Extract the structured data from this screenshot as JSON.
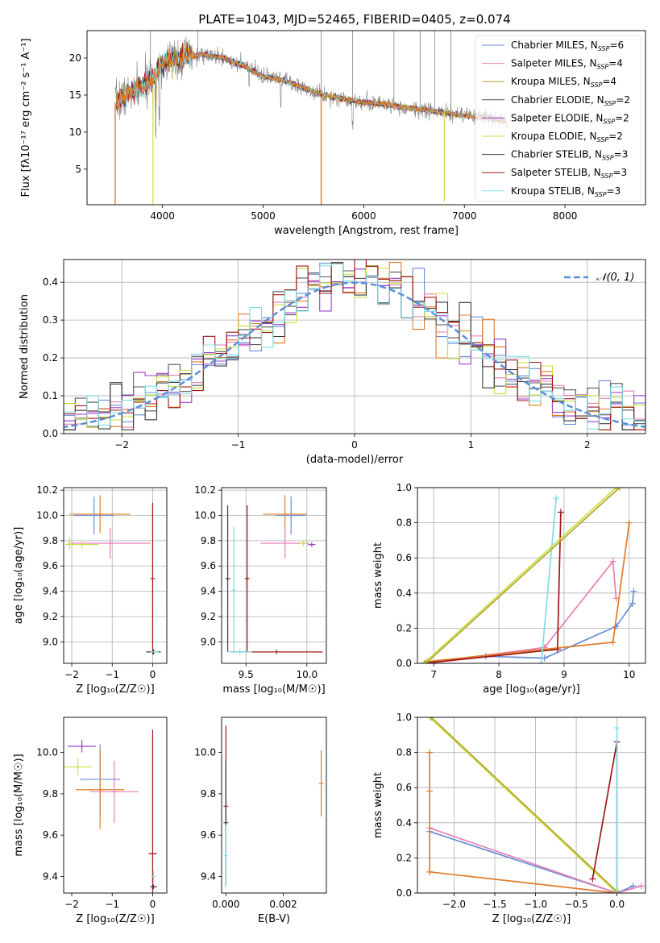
{
  "figure_title": "PLATE=1043, MJD=52465, FIBERID=0405, z=0.074",
  "colors": {
    "Chabrier MILES": "#6a8fd6",
    "Salpeter MILES": "#e67fb6",
    "Kroupa MILES": "#b5a630",
    "Chabrier ELODIE": "#555555",
    "Salpeter ELODIE": "#9a3fd0",
    "Kroupa ELODIE": "#c8e040",
    "Chabrier STELIB": "#3b3b3b",
    "Salpeter STELIB": "#a01818",
    "Kroupa STELIB": "#80dde6",
    "orange": "#e07b25",
    "data_spectrum": "#808080",
    "normal_curve": "#5b8fd8"
  },
  "chart_data": [
    {
      "type": "line",
      "panel": "spectrum",
      "xlabel": "wavelength [Angstrom, rest frame]",
      "ylabel": "Flux [fλ10⁻¹⁷ erg cm⁻² s⁻¹ A⁻¹]",
      "xlim": [
        3250,
        8800
      ],
      "ylim": [
        0.2,
        23.7
      ],
      "xticks": [
        "4000",
        "5000",
        "6000",
        "7000",
        "8000"
      ],
      "yticks": [
        "5",
        "10",
        "15",
        "20"
      ],
      "continuum_x": [
        3530,
        3700,
        3900,
        4000,
        4200,
        4400,
        4600,
        4800,
        5000,
        5200,
        5400,
        5600,
        5800,
        6000,
        6200,
        6400,
        6600,
        6800,
        7000,
        7200,
        7400,
        7600,
        7800,
        8000,
        8200,
        8400,
        8600
      ],
      "continuum_y": [
        14,
        15.5,
        17,
        19.5,
        20,
        20.5,
        20,
        19,
        17.5,
        17,
        16,
        15,
        14.5,
        14,
        13.8,
        13.3,
        13,
        12.6,
        12.2,
        12,
        11.5,
        10.8,
        10.6,
        10.4,
        9.8,
        9.2,
        8.5
      ],
      "series": [
        {
          "name": "Chabrier MILES, N_SSP=6",
          "label_main": "Chabrier MILES, N",
          "label_sub": "SSP",
          "label_tail": "=6"
        },
        {
          "name": "Salpeter MILES, N_SSP=4",
          "label_main": "Salpeter MILES, N",
          "label_sub": "SSP",
          "label_tail": "=4"
        },
        {
          "name": "Kroupa MILES, N_SSP=4",
          "label_main": "Kroupa MILES, N",
          "label_sub": "SSP",
          "label_tail": "=4"
        },
        {
          "name": "Chabrier ELODIE, N_SSP=2",
          "label_main": "Chabrier ELODIE, N",
          "label_sub": "SSP",
          "label_tail": "=2"
        },
        {
          "name": "Salpeter ELODIE, N_SSP=2",
          "label_main": "Salpeter ELODIE, N",
          "label_sub": "SSP",
          "label_tail": "=2"
        },
        {
          "name": "Kroupa ELODIE, N_SSP=2",
          "label_main": "Kroupa ELODIE, N",
          "label_sub": "SSP",
          "label_tail": "=2"
        },
        {
          "name": "Chabrier STELIB, N_SSP=3",
          "label_main": "Chabrier STELIB, N",
          "label_sub": "SSP",
          "label_tail": "=3"
        },
        {
          "name": "Salpeter STELIB, N_SSP=3",
          "label_main": "Salpeter STELIB, N",
          "label_sub": "SSP",
          "label_tail": "=3"
        },
        {
          "name": "Kroupa STELIB, N_SSP=3",
          "label_main": "Kroupa STELIB, N",
          "label_sub": "SSP",
          "label_tail": "=3"
        }
      ],
      "legend": "top-right",
      "grid": false
    },
    {
      "type": "line",
      "panel": "residual_histogram",
      "xlabel": "(data-model)/error",
      "ylabel": "Normed distribution",
      "xlim": [
        -2.5,
        2.5
      ],
      "ylim": [
        0,
        0.46
      ],
      "xticks": [
        "-2",
        "-1",
        "0",
        "1",
        "2"
      ],
      "yticks": [
        "0.0",
        "0.1",
        "0.2",
        "0.3",
        "0.4"
      ],
      "bin_width": 0.1,
      "normal_legend": "𝒩(0, 1)",
      "legend": "top-right",
      "grid": true
    },
    {
      "type": "scatter",
      "panel": "age_vs_Z",
      "xlabel": "Z [log₁₀(Z/Z☉)]",
      "ylabel": "age  [log₁₀(age/yr)]",
      "xlim": [
        -2.2,
        0.35
      ],
      "ylim": [
        8.83,
        10.22
      ],
      "xticks": [
        "-2",
        "-1",
        "0"
      ],
      "yticks": [
        "9.0",
        "9.2",
        "9.4",
        "9.6",
        "9.8",
        "10.0",
        "10.2"
      ],
      "points": [
        {
          "s": "Chabrier MILES",
          "x": -1.45,
          "y": 10.0,
          "xe": 0.5,
          "ye": 0.15
        },
        {
          "s": "orange",
          "x": -1.3,
          "y": 10.01,
          "xe": 0.75,
          "ye": 0.15
        },
        {
          "s": "Salpeter MILES",
          "x": -1.05,
          "y": 9.78,
          "xe": 1.0,
          "ye": 0.12
        },
        {
          "s": "Kroupa ELODIE",
          "x": -1.75,
          "y": 9.77,
          "xe": 0.4,
          "ye": 0.03
        },
        {
          "s": "Kroupa ELODIE",
          "x": -2.05,
          "y": 9.78,
          "xe": 0.05,
          "ye": 0.05
        },
        {
          "s": "Salpeter STELIB",
          "x": 0.0,
          "y": 9.5,
          "xe": 0.02,
          "ye": 0.6
        },
        {
          "s": "Chabrier STELIB",
          "x": 0.02,
          "y": 8.92,
          "xe": 0.18,
          "ye": 0.02
        },
        {
          "s": "Kroupa STELIB",
          "x": 0.05,
          "y": 8.92,
          "xe": 0.1,
          "ye": 0.01
        }
      ],
      "grid": true
    },
    {
      "type": "scatter",
      "panel": "age_vs_mass",
      "xlabel": "mass [log₁₀(M/M☉)]",
      "ylabel": "",
      "xlim": [
        9.3,
        10.16
      ],
      "ylim": [
        8.83,
        10.22
      ],
      "xticks": [
        "9.5",
        "10.0"
      ],
      "yticks": [
        "9.0",
        "9.2",
        "9.4",
        "9.6",
        "9.8",
        "10.0",
        "10.2"
      ],
      "points": [
        {
          "s": "Chabrier MILES",
          "x": 9.87,
          "y": 10.0,
          "xe": 0.12,
          "ye": 0.15
        },
        {
          "s": "orange",
          "x": 9.82,
          "y": 10.01,
          "xe": 0.18,
          "ye": 0.15
        },
        {
          "s": "Salpeter MILES",
          "x": 9.82,
          "y": 9.78,
          "xe": 0.2,
          "ye": 0.12
        },
        {
          "s": "Kroupa ELODIE",
          "x": 9.97,
          "y": 9.78,
          "xe": 0.03,
          "ye": 0.02
        },
        {
          "s": "Salpeter ELODIE",
          "x": 10.04,
          "y": 9.77,
          "xe": 0.03,
          "ye": 0.01
        },
        {
          "s": "Salpeter STELIB",
          "x": 9.51,
          "y": 9.5,
          "xe": 0.01,
          "ye": 0.58
        },
        {
          "s": "Chabrier STELIB",
          "x": 9.35,
          "y": 9.5,
          "xe": 0.01,
          "ye": 0.58
        },
        {
          "s": "Kroupa STELIB",
          "x": 9.4,
          "y": 9.41,
          "xe": 0.01,
          "ye": 0.5
        },
        {
          "s": "Salpeter STELIB",
          "x": 9.75,
          "y": 8.92,
          "xe": 0.38,
          "ye": 0.01
        },
        {
          "s": "Kroupa STELIB",
          "x": 9.45,
          "y": 8.92,
          "xe": 0.1,
          "ye": 0.01
        }
      ],
      "grid": true
    },
    {
      "type": "line",
      "panel": "mass_weight_vs_age",
      "xlabel": "age  [log₁₀(age/yr)]",
      "ylabel": "mass weight",
      "xlim": [
        6.75,
        10.25
      ],
      "ylim": [
        0,
        1
      ],
      "xticks": [
        "7",
        "8",
        "9",
        "10"
      ],
      "yticks": [
        "0.0",
        "0.2",
        "0.4",
        "0.6",
        "0.8",
        "1.0"
      ],
      "series": [
        {
          "s": "Chabrier MILES",
          "x": [
            6.85,
            7.8,
            8.7,
            9.8,
            10.05,
            10.07
          ],
          "y": [
            0.0,
            0.04,
            0.03,
            0.21,
            0.34,
            0.41
          ]
        },
        {
          "s": "Salpeter MILES",
          "x": [
            6.87,
            8.7,
            9.75,
            9.8
          ],
          "y": [
            0.0,
            0.09,
            0.58,
            0.37
          ]
        },
        {
          "s": "orange",
          "x": [
            6.9,
            9.75,
            10.0
          ],
          "y": [
            0.01,
            0.12,
            0.8
          ]
        },
        {
          "s": "Salpeter STELIB",
          "x": [
            6.85,
            8.9,
            8.95
          ],
          "y": [
            0.0,
            0.08,
            0.86
          ]
        },
        {
          "s": "Kroupa STELIB",
          "x": [
            8.65,
            8.88
          ],
          "y": [
            0.0,
            0.94
          ]
        },
        {
          "s": "Kroupa ELODIE",
          "x": [
            6.85,
            9.8
          ],
          "y": [
            0.0,
            1.0
          ]
        },
        {
          "s": "Kroupa MILES",
          "x": [
            6.88,
            9.85
          ],
          "y": [
            0.0,
            1.0
          ]
        }
      ],
      "grid": true
    },
    {
      "type": "scatter",
      "panel": "mass_vs_Z",
      "xlabel": "Z [log₁₀(Z/Z☉)]",
      "ylabel": "mass [log₁₀(M/M☉)]",
      "xlim": [
        -2.2,
        0.35
      ],
      "ylim": [
        9.32,
        10.17
      ],
      "xticks": [
        "-2",
        "-1",
        "0"
      ],
      "yticks": [
        "9.4",
        "9.6",
        "9.8",
        "10.0"
      ],
      "points": [
        {
          "s": "Salpeter ELODIE",
          "x": -1.75,
          "y": 10.03,
          "xe": 0.35,
          "ye": 0.03
        },
        {
          "s": "Kroupa ELODIE",
          "x": -1.85,
          "y": 9.93,
          "xe": 0.35,
          "ye": 0.04
        },
        {
          "s": "Chabrier MILES",
          "x": -1.3,
          "y": 9.87,
          "xe": 0.5,
          "ye": 0.17
        },
        {
          "s": "orange",
          "x": -1.3,
          "y": 9.82,
          "xe": 0.6,
          "ye": 0.19
        },
        {
          "s": "Salpeter MILES",
          "x": -0.95,
          "y": 9.81,
          "xe": 0.6,
          "ye": 0.15
        },
        {
          "s": "Salpeter STELIB",
          "x": 0.0,
          "y": 9.51,
          "xe": 0.1,
          "ye": 0.6
        },
        {
          "s": "Kroupa STELIB",
          "x": 0.02,
          "y": 9.4,
          "xe": 0.03,
          "ye": 0.03
        },
        {
          "s": "Chabrier STELIB",
          "x": 0.02,
          "y": 9.35,
          "xe": 0.08,
          "ye": 0.01
        }
      ],
      "grid": false
    },
    {
      "type": "scatter",
      "panel": "mass_vs_EBV",
      "xlabel": "E(B-V)",
      "ylabel": "",
      "xlim": [
        -0.00015,
        0.0035
      ],
      "ylim": [
        9.32,
        10.17
      ],
      "xticks": [
        "0.000",
        "0.002"
      ],
      "yticks": [
        "9.4",
        "9.6",
        "9.8",
        "10.0"
      ],
      "points": [
        {
          "s": "Salpeter STELIB",
          "x": 0.0,
          "y": 9.74,
          "xe": 0,
          "ye": 0.39
        },
        {
          "s": "Chabrier STELIB",
          "x": 0.0,
          "y": 9.66,
          "xe": 0,
          "ye": 0.3
        },
        {
          "s": "Kroupa STELIB",
          "x": 0.0,
          "y": 9.5,
          "xe": 0,
          "ye": 0.15
        },
        {
          "s": "orange",
          "x": 0.00332,
          "y": 9.85,
          "xe": 0,
          "ye": 0.16
        }
      ],
      "grid": false
    },
    {
      "type": "line",
      "panel": "mass_weight_vs_Z",
      "xlabel": "Z [log₁₀(Z/Z☉)]",
      "ylabel": "mass weight",
      "xlim": [
        -2.45,
        0.35
      ],
      "ylim": [
        0,
        1
      ],
      "xticks": [
        "-2.0",
        "-1.5",
        "-1.0",
        "-0.5",
        "0.0"
      ],
      "yticks": [
        "0.0",
        "0.2",
        "0.4",
        "0.6",
        "0.8",
        "1.0"
      ],
      "series": [
        {
          "s": "Chabrier MILES",
          "x": [
            -2.3,
            0.0,
            0.2
          ],
          "y": [
            0.35,
            0.0,
            0.04
          ]
        },
        {
          "s": "Salpeter MILES",
          "x": [
            -2.3,
            0.0,
            0.3
          ],
          "y": [
            0.37,
            0.0,
            0.04
          ]
        },
        {
          "s": "orange",
          "x": [
            -2.3,
            -2.3,
            -2.3,
            0.0
          ],
          "y": [
            0.8,
            0.58,
            0.12,
            0.0
          ]
        },
        {
          "s": "Kroupa ELODIE",
          "x": [
            -2.3,
            0.0
          ],
          "y": [
            1.0,
            0.0
          ]
        },
        {
          "s": "Kroupa MILES",
          "x": [
            -2.28,
            0.02
          ],
          "y": [
            1.0,
            0.0
          ]
        },
        {
          "s": "Salpeter STELIB",
          "x": [
            -0.3,
            0.0,
            0.0
          ],
          "y": [
            0.08,
            0.86,
            0.0
          ]
        },
        {
          "s": "Kroupa STELIB",
          "x": [
            0.0,
            0.0
          ],
          "y": [
            0.0,
            0.94
          ]
        }
      ],
      "grid": true
    }
  ]
}
